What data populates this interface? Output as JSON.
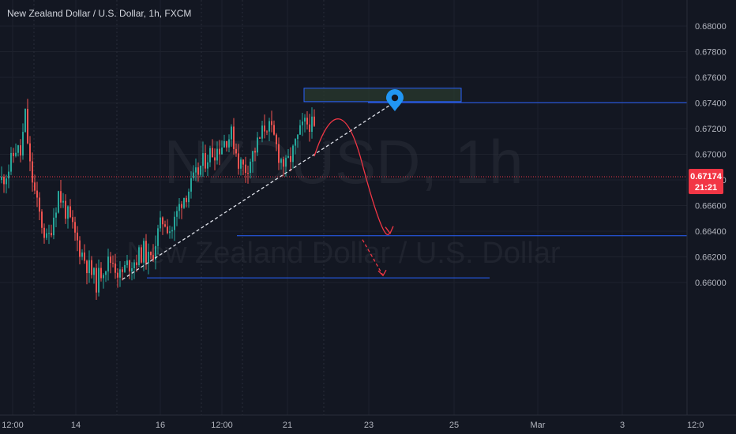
{
  "symbol": {
    "title": "New Zealand Dollar / U.S. Dollar, 1h, FXCM",
    "watermark_ticker": "NZDUSD, 1h",
    "watermark_name": "New Zealand Dollar / U.S. Dollar"
  },
  "price_tag": {
    "price": "0.67174",
    "countdown": "21:21",
    "color": "#f23645"
  },
  "colors": {
    "background": "#131722",
    "up_candle": "#26a69a",
    "down_candle": "#ef5350",
    "drawing_line": "#2962ff",
    "arrow": "#f23645",
    "trendline": "#e0e3eb",
    "zone_fill": "#2a3a2e",
    "marker": "#2196f3"
  },
  "chart_data": {
    "type": "candlestick",
    "title": "New Zealand Dollar / U.S. Dollar, 1h, FXCM",
    "y_ticks": [
      "0.68000",
      "0.67800",
      "0.67600",
      "0.67400",
      "0.67200",
      "0.67000",
      "0.66800",
      "0.66600",
      "0.66400",
      "0.66200",
      "0.66000"
    ],
    "ylim": [
      0.6594,
      0.6817
    ],
    "x_ticks": [
      "12:00",
      "14",
      "16",
      "12:00",
      "21",
      "23",
      "25",
      "Mar",
      "3",
      "12:0"
    ],
    "last_price": 0.67174,
    "grid": true,
    "price_path": [
      [
        0,
        0.668
      ],
      [
        10,
        0.669
      ],
      [
        18,
        0.6705
      ],
      [
        24,
        0.67
      ],
      [
        30,
        0.673
      ],
      [
        36,
        0.669
      ],
      [
        45,
        0.666
      ],
      [
        58,
        0.663
      ],
      [
        72,
        0.667
      ],
      [
        85,
        0.665
      ],
      [
        98,
        0.6628
      ],
      [
        110,
        0.6612
      ],
      [
        120,
        0.66
      ],
      [
        128,
        0.6612
      ],
      [
        140,
        0.6618
      ],
      [
        150,
        0.6605
      ],
      [
        160,
        0.6614
      ],
      [
        170,
        0.6618
      ],
      [
        180,
        0.6625
      ],
      [
        188,
        0.6615
      ],
      [
        196,
        0.6635
      ],
      [
        205,
        0.665
      ],
      [
        215,
        0.664
      ],
      [
        228,
        0.6665
      ],
      [
        240,
        0.6675
      ],
      [
        252,
        0.669
      ],
      [
        262,
        0.67
      ],
      [
        275,
        0.6705
      ],
      [
        285,
        0.6713
      ],
      [
        292,
        0.6715
      ],
      [
        300,
        0.6695
      ],
      [
        308,
        0.6688
      ],
      [
        318,
        0.67
      ],
      [
        328,
        0.6713
      ],
      [
        335,
        0.6725
      ],
      [
        345,
        0.6712
      ],
      [
        352,
        0.6698
      ],
      [
        360,
        0.669
      ],
      [
        368,
        0.67
      ],
      [
        375,
        0.6712
      ],
      [
        382,
        0.6722
      ],
      [
        390,
        0.6725
      ],
      [
        396,
        0.6718
      ]
    ],
    "drawings": {
      "supply_zone": {
        "price_top": 0.67515,
        "price_bottom": 0.6741
      },
      "resistance_line": 0.67403,
      "target_1": 0.66365,
      "target_2": 0.66036,
      "trendline": {
        "from": 0.66024,
        "to": 0.67388
      }
    }
  }
}
